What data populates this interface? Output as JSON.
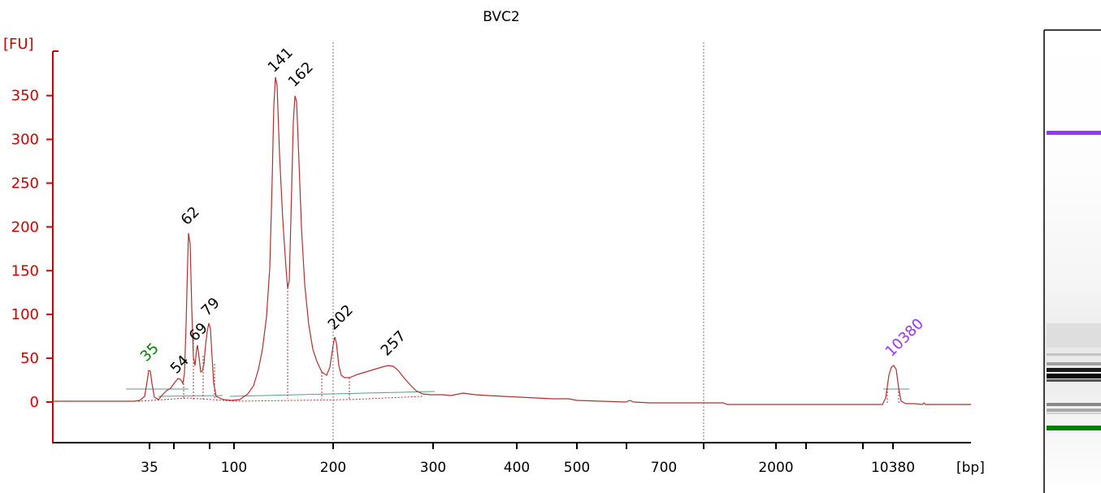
{
  "chart_data": {
    "type": "line",
    "title": "BVC2",
    "y_unit": "[FU]",
    "x_unit": "[bp]",
    "ylim": [
      -45,
      400
    ],
    "y_ticks": [
      0,
      50,
      100,
      150,
      200,
      250,
      300,
      350
    ],
    "x_tick_labels": [
      "35",
      "100",
      "200",
      "300",
      "400",
      "500",
      "700",
      "2000",
      "10380"
    ],
    "peaks": [
      {
        "label": "35",
        "x": 35,
        "y": 35,
        "marker": "lower"
      },
      {
        "label": "54",
        "x": 54,
        "y": 27,
        "marker": "none"
      },
      {
        "label": "62",
        "x": 62,
        "y": 194,
        "marker": "none"
      },
      {
        "label": "69",
        "x": 69,
        "y": 64,
        "marker": "none"
      },
      {
        "label": "79",
        "x": 79,
        "y": 92,
        "marker": "none"
      },
      {
        "label": "141",
        "x": 141,
        "y": 372,
        "marker": "none"
      },
      {
        "label": "162",
        "x": 162,
        "y": 352,
        "marker": "none"
      },
      {
        "label": "202",
        "x": 202,
        "y": 73,
        "marker": "none"
      },
      {
        "label": "257",
        "x": 257,
        "y": 41,
        "marker": "none"
      },
      {
        "label": "10380",
        "x": 10380,
        "y": 40,
        "marker": "upper"
      }
    ],
    "colors": {
      "trace": "#b03030",
      "axis": "#cc0000",
      "lower_marker": "#008000",
      "upper_marker": "#9933ff",
      "baseline": "#5a9a8a"
    }
  }
}
